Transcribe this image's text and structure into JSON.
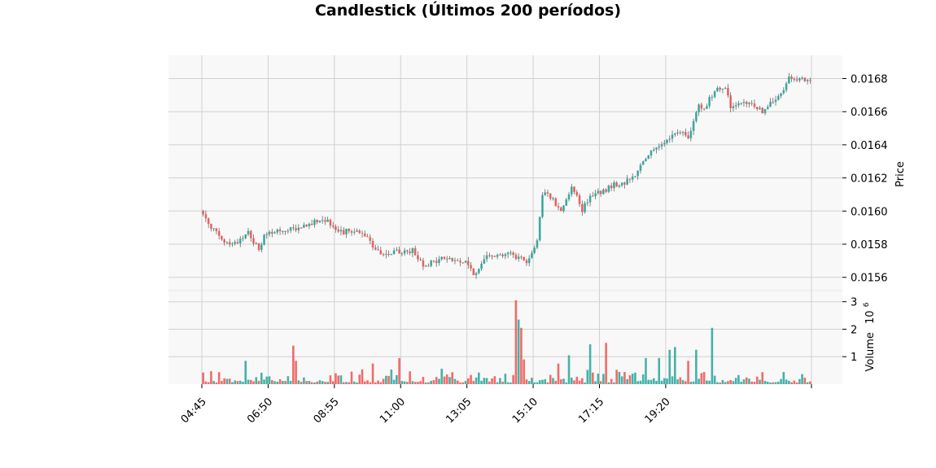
{
  "chart_data": {
    "type": "candlestick",
    "title": "Candlestick (Últimos 200 períodos)",
    "price_ylabel": "Price",
    "volume_ylabel": "Volume",
    "volume_multiplier_label": "10",
    "volume_multiplier_exp": "6",
    "price_ticks": [
      "0.0156",
      "0.0158",
      "0.0160",
      "0.0162",
      "0.0164",
      "0.0166",
      "0.0168"
    ],
    "volume_ticks": [
      "1",
      "2",
      "3"
    ],
    "x_ticks": [
      "04:45",
      "06:50",
      "08:55",
      "11:00",
      "13:05",
      "15:10",
      "17:15",
      "19:20"
    ],
    "price_ylim": [
      0.01552,
      0.01694
    ],
    "volume_ylim": [
      0,
      3.05
    ],
    "num_candles": 200,
    "up_color": "#26a69a",
    "down_color": "#ef5350",
    "grid": true,
    "price_path": [
      [
        0,
        0.016
      ],
      [
        4,
        0.01591
      ],
      [
        8,
        0.01582
      ],
      [
        12,
        0.0158
      ],
      [
        16,
        0.01584
      ],
      [
        18,
        0.01587
      ],
      [
        20,
        0.01582
      ],
      [
        22,
        0.01577
      ],
      [
        24,
        0.01584
      ],
      [
        28,
        0.01588
      ],
      [
        32,
        0.01587
      ],
      [
        36,
        0.0159
      ],
      [
        40,
        0.01591
      ],
      [
        44,
        0.01595
      ],
      [
        48,
        0.01594
      ],
      [
        52,
        0.01587
      ],
      [
        56,
        0.01588
      ],
      [
        60,
        0.01588
      ],
      [
        64,
        0.01581
      ],
      [
        68,
        0.01573
      ],
      [
        72,
        0.01574
      ],
      [
        76,
        0.01576
      ],
      [
        80,
        0.01576
      ],
      [
        84,
        0.01568
      ],
      [
        88,
        0.01569
      ],
      [
        92,
        0.01572
      ],
      [
        96,
        0.0157
      ],
      [
        100,
        0.01569
      ],
      [
        104,
        0.01561
      ],
      [
        108,
        0.01575
      ],
      [
        112,
        0.01573
      ],
      [
        116,
        0.01575
      ],
      [
        120,
        0.01571
      ],
      [
        124,
        0.0157
      ],
      [
        127,
        0.01583
      ],
      [
        129,
        0.0161
      ],
      [
        132,
        0.01609
      ],
      [
        136,
        0.016
      ],
      [
        140,
        0.01615
      ],
      [
        144,
        0.01601
      ],
      [
        148,
        0.0161
      ],
      [
        152,
        0.01612
      ],
      [
        156,
        0.01616
      ],
      [
        160,
        0.01617
      ],
      [
        164,
        0.01622
      ],
      [
        168,
        0.01633
      ],
      [
        172,
        0.01637
      ],
      [
        176,
        0.01644
      ],
      [
        180,
        0.01648
      ],
      [
        184,
        0.01644
      ],
      [
        188,
        0.01665
      ],
      [
        190,
        0.01662
      ],
      [
        194,
        0.01673
      ],
      [
        198,
        0.01676
      ],
      [
        200,
        0.01662
      ],
      [
        204,
        0.01664
      ],
      [
        208,
        0.01665
      ],
      [
        212,
        0.0166
      ],
      [
        216,
        0.01666
      ],
      [
        220,
        0.01672
      ],
      [
        222,
        0.01682
      ],
      [
        226,
        0.01679
      ],
      [
        230,
        0.01678
      ]
    ],
    "volume_spikes": [
      [
        16,
        0.85
      ],
      [
        34,
        1.4
      ],
      [
        35,
        0.85
      ],
      [
        64,
        0.75
      ],
      [
        74,
        0.95
      ],
      [
        118,
        3.05
      ],
      [
        119,
        2.35
      ],
      [
        120,
        2.05
      ],
      [
        121,
        0.9
      ],
      [
        134,
        0.75
      ],
      [
        138,
        1.05
      ],
      [
        146,
        1.45
      ],
      [
        152,
        1.5
      ],
      [
        167,
        0.95
      ],
      [
        172,
        0.95
      ],
      [
        176,
        1.25
      ],
      [
        178,
        1.35
      ],
      [
        183,
        0.85
      ],
      [
        186,
        1.25
      ],
      [
        192,
        2.05
      ]
    ]
  }
}
